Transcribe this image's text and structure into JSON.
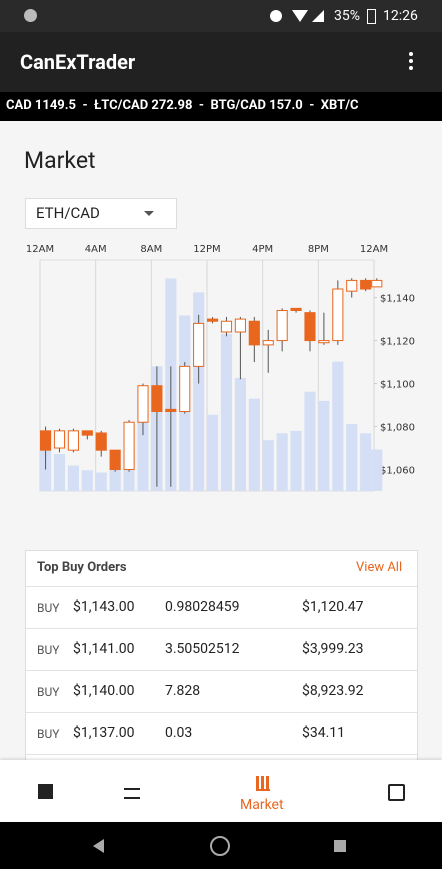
{
  "status_bar": {
    "battery": "35%",
    "time": "12:26"
  },
  "app_bar": {
    "title": "CanExTrader"
  },
  "ticker": "CAD 1149.5  -  ŁTC/CAD 272.98  -  BTG/CAD 157.0  -  XBT/C",
  "section_title": "Market",
  "pair_selector": "ETH/CAD",
  "chart_data": {
    "type": "candlestick",
    "color": "#e8661e",
    "volume_color": "#d4dff5",
    "x": [
      0.4,
      1.4,
      2.4,
      3.4,
      4.4,
      5.4,
      6.4,
      7.4,
      8.4,
      9.4,
      10.4,
      11.4,
      12.4,
      13.4,
      14.4,
      15.4,
      16.4,
      17.4,
      18.4,
      19.4,
      20.4,
      21.4,
      22.4,
      23.4,
      24.2
    ],
    "open": [
      1078,
      1070,
      1069,
      1078,
      1077,
      1069,
      1060,
      1082,
      1099,
      1088,
      1087,
      1108,
      1130,
      1124,
      1124,
      1129,
      1118,
      1120,
      1135,
      1133,
      1119,
      1120,
      1143,
      1148,
      1145
    ],
    "high": [
      1080,
      1079,
      1079,
      1078,
      1078,
      1069,
      1083,
      1100,
      1108,
      1108,
      1110,
      1132,
      1131,
      1131,
      1131,
      1131,
      1125,
      1135,
      1135,
      1134,
      1133,
      1148,
      1149,
      1149,
      1149
    ],
    "low": [
      1060,
      1068,
      1068,
      1074,
      1066,
      1059,
      1059,
      1076,
      1052,
      1052,
      1086,
      1100,
      1128,
      1122,
      1102,
      1110,
      1105,
      1115,
      1133,
      1115,
      1118,
      1118,
      1140,
      1143,
      1145
    ],
    "close": [
      1069,
      1078,
      1078,
      1076,
      1069,
      1060,
      1082,
      1099,
      1087,
      1087,
      1108,
      1128,
      1129,
      1129,
      1130,
      1118,
      1120,
      1134,
      1134,
      1120,
      1120,
      1144,
      1148,
      1144,
      1148
    ],
    "volume": [
      26,
      16,
      11,
      9,
      8,
      11,
      18,
      37,
      54,
      92,
      76,
      86,
      33,
      68,
      49,
      40,
      22,
      25,
      26,
      43,
      39,
      56,
      29,
      25,
      18
    ],
    "xlim": [
      0,
      24
    ],
    "xticks": [
      {
        "value": 0,
        "label": "12AM"
      },
      {
        "value": 4,
        "label": "4AM"
      },
      {
        "value": 8,
        "label": "8AM"
      },
      {
        "value": 12,
        "label": "12PM"
      },
      {
        "value": 16,
        "label": "4PM"
      },
      {
        "value": 20,
        "label": "8PM"
      },
      {
        "value": 24,
        "label": "12AM"
      }
    ],
    "ylim": [
      1050,
      1157.5
    ],
    "yticks": [
      {
        "value": 1060,
        "label": "$1,060"
      },
      {
        "value": 1080,
        "label": "$1,080"
      },
      {
        "value": 1100,
        "label": "$1,100"
      },
      {
        "value": 1120,
        "label": "$1,120"
      },
      {
        "value": 1140,
        "label": "$1,140"
      }
    ],
    "y2lim": [
      0,
      100
    ],
    "grid": true
  },
  "orders": {
    "title": "Top Buy Orders",
    "link": "View All",
    "rows": [
      [
        "BUY",
        "$1,143.00",
        "0.98028459",
        "$1,120.47"
      ],
      [
        "BUY",
        "$1,141.00",
        "3.50502512",
        "$3,999.23"
      ],
      [
        "BUY",
        "$1,140.00",
        "7.828",
        "$8,923.92"
      ],
      [
        "BUY",
        "$1,137.00",
        "0.03",
        "$34.11"
      ]
    ]
  },
  "bottom_nav": {
    "active": "Market"
  }
}
